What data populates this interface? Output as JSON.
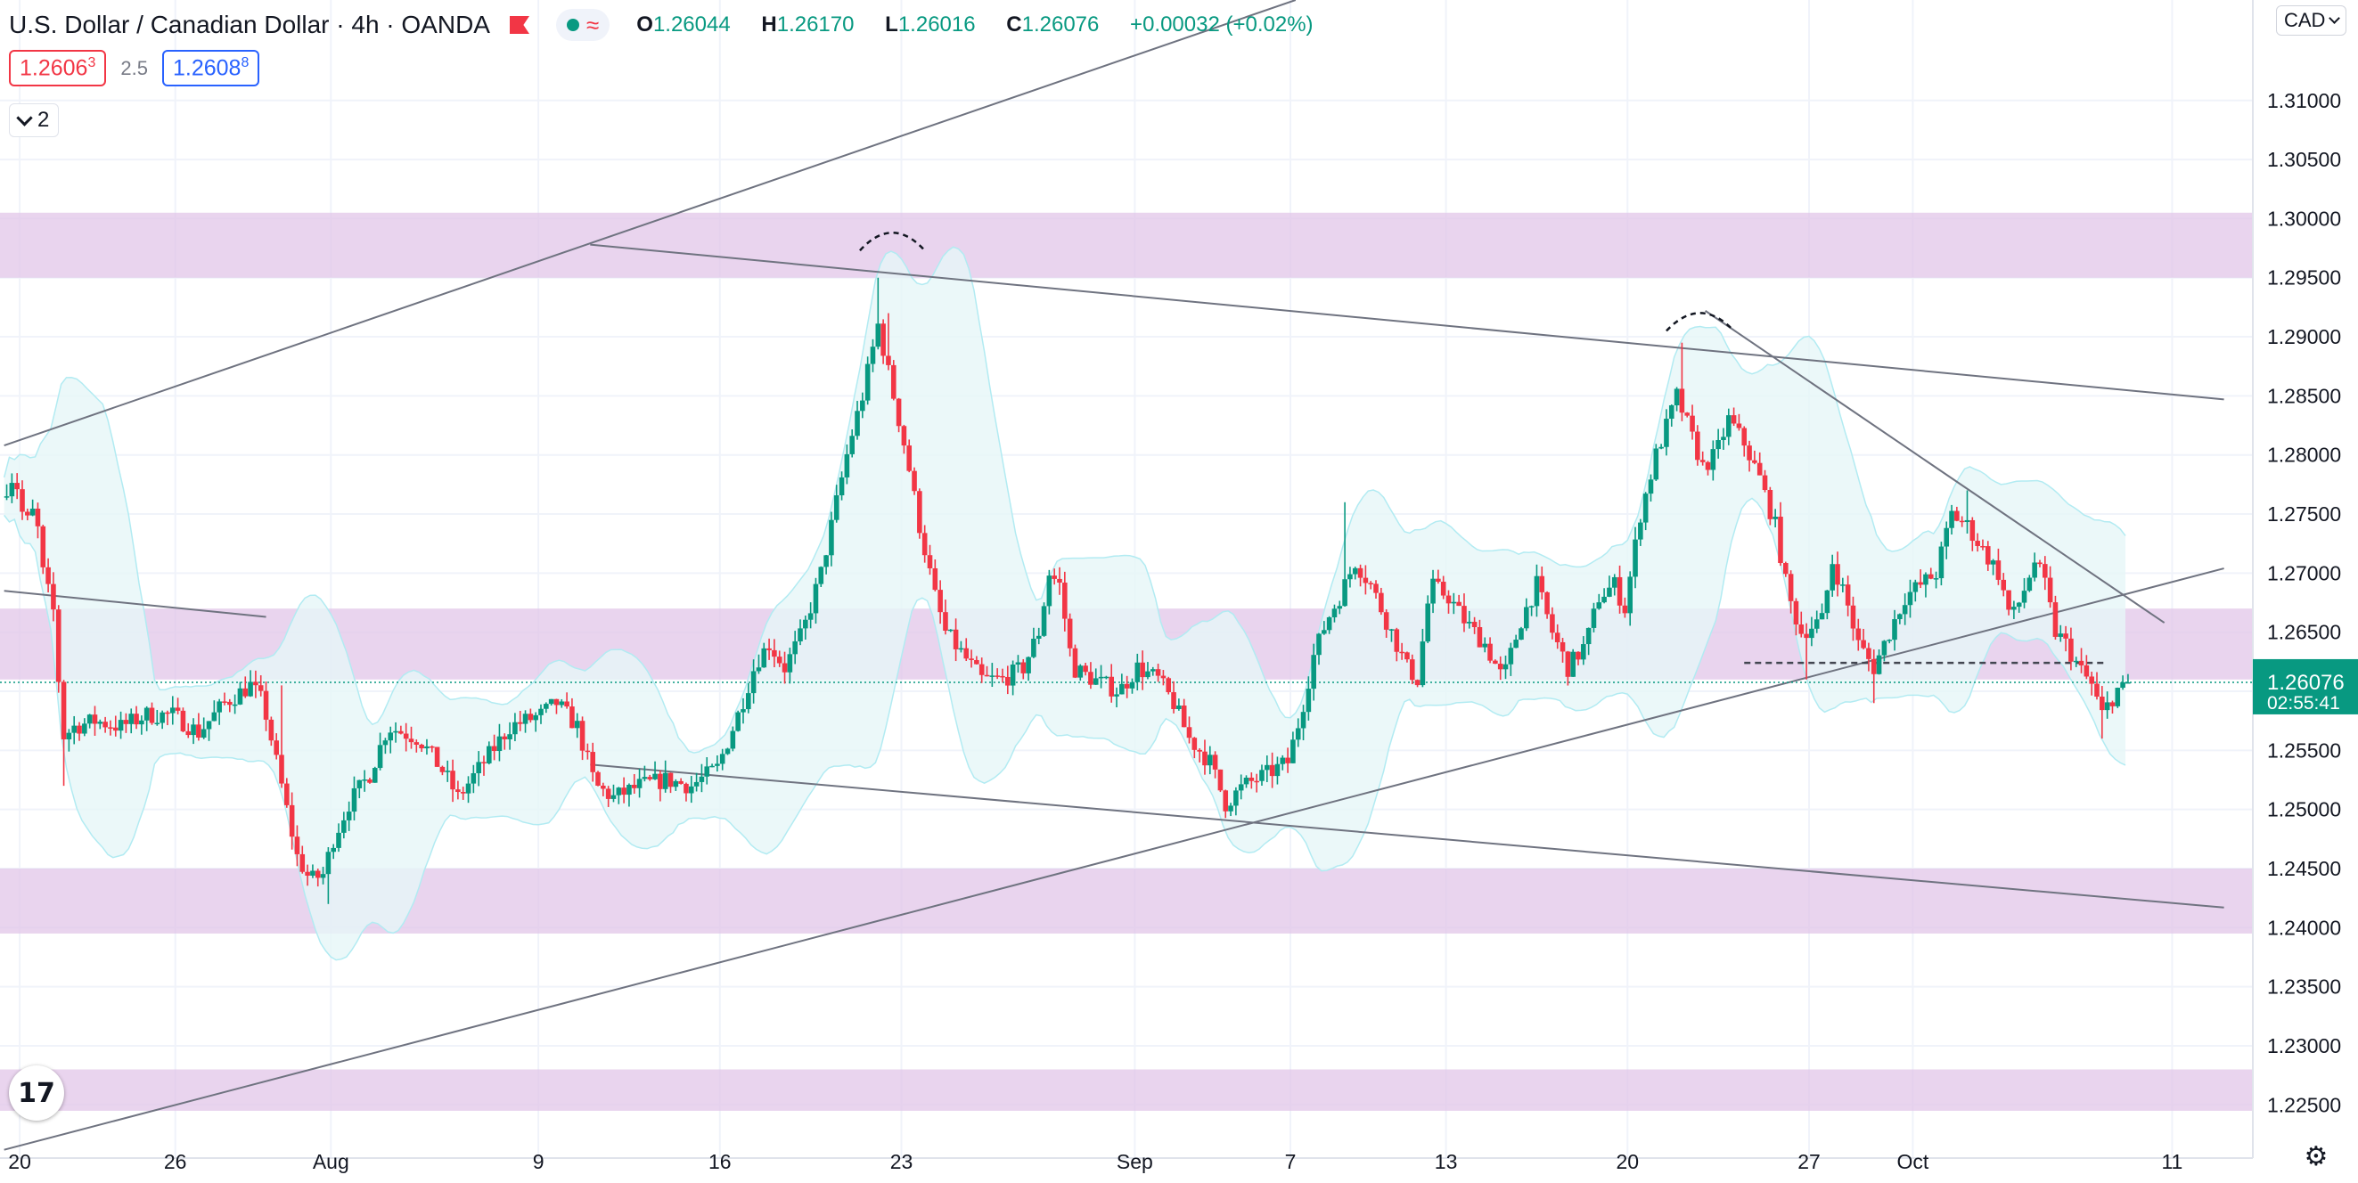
{
  "header": {
    "symbol": "U.S. Dollar / Canadian Dollar · 4h · OANDA",
    "ohlc": {
      "o_label": "O",
      "o": "1.26044",
      "h_label": "H",
      "h": "1.26170",
      "l_label": "L",
      "l": "1.26016",
      "c_label": "C",
      "c": "1.26076",
      "change": "+0.00032 (+0.02%)"
    },
    "sell_price": "1.2606",
    "sell_sup": "3",
    "spread": "2.5",
    "buy_price": "1.2608",
    "buy_sup": "8",
    "collapsed_count": "2",
    "currency": "CAD"
  },
  "colors": {
    "up": "#089981",
    "down": "#f23645",
    "zone": "#e1c6e8",
    "band": "#e6f6f8"
  },
  "chart_data": {
    "type": "candlestick",
    "title": "U.S. Dollar / Canadian Dollar · 4h · OANDA",
    "ylim": [
      1.2205,
      1.3185
    ],
    "yticks": [
      1.225,
      1.23,
      1.235,
      1.24,
      1.245,
      1.25,
      1.255,
      1.26,
      1.265,
      1.27,
      1.275,
      1.28,
      1.285,
      1.29,
      1.295,
      1.3,
      1.305,
      1.31
    ],
    "x_tick_labels": [
      {
        "label": "20",
        "day": -5
      },
      {
        "label": "26",
        "day": 1
      },
      {
        "label": "Aug",
        "day": 7
      },
      {
        "label": "9",
        "day": 15
      },
      {
        "label": "16",
        "day": 22
      },
      {
        "label": "23",
        "day": 29
      },
      {
        "label": "Sep",
        "day": 38
      },
      {
        "label": "7",
        "day": 44
      },
      {
        "label": "13",
        "day": 50
      },
      {
        "label": "20",
        "day": 57
      },
      {
        "label": "27",
        "day": 64
      },
      {
        "label": "Oct",
        "day": 68
      },
      {
        "label": "11",
        "day": 78
      }
    ],
    "price_keypoints": [
      [
        -5.6,
        1.2765
      ],
      [
        -5.1,
        1.2785
      ],
      [
        -4.7,
        1.274
      ],
      [
        -4.3,
        1.2755
      ],
      [
        -4.0,
        1.27
      ],
      [
        -3.5,
        1.266
      ],
      [
        -3.3,
        1.256
      ],
      [
        -2.8,
        1.257
      ],
      [
        -2.0,
        1.2575
      ],
      [
        -1.0,
        1.257
      ],
      [
        0.0,
        1.258
      ],
      [
        1.0,
        1.258
      ],
      [
        2.0,
        1.2565
      ],
      [
        3.0,
        1.259
      ],
      [
        4.0,
        1.2605
      ],
      [
        4.5,
        1.259
      ],
      [
        5.2,
        1.252
      ],
      [
        5.8,
        1.246
      ],
      [
        6.3,
        1.244
      ],
      [
        6.8,
        1.2445
      ],
      [
        7.2,
        1.2475
      ],
      [
        7.8,
        1.2505
      ],
      [
        8.6,
        1.253
      ],
      [
        9.3,
        1.257
      ],
      [
        10.5,
        1.256
      ],
      [
        11.5,
        1.253
      ],
      [
        12.0,
        1.251
      ],
      [
        13.0,
        1.254
      ],
      [
        14.0,
        1.257
      ],
      [
        15.2,
        1.258
      ],
      [
        15.8,
        1.259
      ],
      [
        16.6,
        1.257
      ],
      [
        17.3,
        1.252
      ],
      [
        18.0,
        1.251
      ],
      [
        19.0,
        1.252
      ],
      [
        20.0,
        1.2525
      ],
      [
        21.0,
        1.252
      ],
      [
        22.0,
        1.2535
      ],
      [
        22.8,
        1.258
      ],
      [
        23.5,
        1.2625
      ],
      [
        24.0,
        1.264
      ],
      [
        24.6,
        1.262
      ],
      [
        25.3,
        1.265
      ],
      [
        26.0,
        1.27
      ],
      [
        26.6,
        1.276
      ],
      [
        27.1,
        1.281
      ],
      [
        27.6,
        1.285
      ],
      [
        28.2,
        1.291
      ],
      [
        28.5,
        1.288
      ],
      [
        28.8,
        1.285
      ],
      [
        29.3,
        1.28
      ],
      [
        29.8,
        1.274
      ],
      [
        30.4,
        1.268
      ],
      [
        30.8,
        1.265
      ],
      [
        31.5,
        1.263
      ],
      [
        32.2,
        1.261
      ],
      [
        33.0,
        1.261
      ],
      [
        33.8,
        1.262
      ],
      [
        34.4,
        1.265
      ],
      [
        34.8,
        1.27
      ],
      [
        35.2,
        1.269
      ],
      [
        35.7,
        1.262
      ],
      [
        36.5,
        1.261
      ],
      [
        37.5,
        1.26
      ],
      [
        38.2,
        1.262
      ],
      [
        39.0,
        1.261
      ],
      [
        39.6,
        1.259
      ],
      [
        40.2,
        1.256
      ],
      [
        41.0,
        1.254
      ],
      [
        41.6,
        1.2505
      ],
      [
        42.3,
        1.252
      ],
      [
        43.2,
        1.253
      ],
      [
        44.0,
        1.254
      ],
      [
        44.5,
        1.258
      ],
      [
        45.0,
        1.263
      ],
      [
        45.5,
        1.266
      ],
      [
        46.0,
        1.268
      ],
      [
        46.6,
        1.271
      ],
      [
        47.2,
        1.269
      ],
      [
        48.0,
        1.265
      ],
      [
        48.6,
        1.262
      ],
      [
        49.0,
        1.261
      ],
      [
        49.5,
        1.269
      ],
      [
        50.2,
        1.268
      ],
      [
        50.8,
        1.266
      ],
      [
        51.6,
        1.264
      ],
      [
        52.3,
        1.261
      ],
      [
        53.0,
        1.266
      ],
      [
        53.6,
        1.269
      ],
      [
        54.2,
        1.265
      ],
      [
        54.8,
        1.262
      ],
      [
        55.5,
        1.264
      ],
      [
        56.0,
        1.268
      ],
      [
        56.6,
        1.269
      ],
      [
        57.0,
        1.267
      ],
      [
        57.6,
        1.275
      ],
      [
        58.2,
        1.28
      ],
      [
        58.7,
        1.283
      ],
      [
        59.0,
        1.285
      ],
      [
        59.5,
        1.282
      ],
      [
        60.0,
        1.279
      ],
      [
        60.5,
        1.28
      ],
      [
        61.0,
        1.283
      ],
      [
        61.6,
        1.281
      ],
      [
        62.2,
        1.278
      ],
      [
        62.8,
        1.274
      ],
      [
        63.3,
        1.268
      ],
      [
        63.8,
        1.265
      ],
      [
        64.6,
        1.266
      ],
      [
        65.0,
        1.271
      ],
      [
        65.5,
        1.268
      ],
      [
        66.0,
        1.264
      ],
      [
        66.6,
        1.262
      ],
      [
        67.2,
        1.265
      ],
      [
        67.8,
        1.268
      ],
      [
        68.4,
        1.269
      ],
      [
        69.0,
        1.27
      ],
      [
        69.6,
        1.275
      ],
      [
        70.2,
        1.274
      ],
      [
        70.8,
        1.272
      ],
      [
        71.4,
        1.27
      ],
      [
        71.9,
        1.266
      ],
      [
        72.3,
        1.268
      ],
      [
        72.8,
        1.271
      ],
      [
        73.2,
        1.269
      ],
      [
        73.6,
        1.265
      ],
      [
        74.0,
        1.264
      ],
      [
        74.5,
        1.262
      ],
      [
        75.0,
        1.2605
      ],
      [
        75.4,
        1.258
      ],
      [
        75.8,
        1.2595
      ],
      [
        76.2,
        1.2608
      ]
    ],
    "spikes": [
      [
        -3.3,
        1.252,
        0
      ],
      [
        5.0,
        1.2605,
        1
      ],
      [
        6.8,
        1.242,
        0
      ],
      [
        28.0,
        1.295,
        1
      ],
      [
        28.3,
        1.292,
        1
      ],
      [
        46.0,
        1.276,
        1
      ],
      [
        59.0,
        1.2895,
        1
      ],
      [
        62.8,
        1.276,
        1
      ],
      [
        63.8,
        1.261,
        0
      ],
      [
        70.0,
        1.277,
        1
      ],
      [
        66.5,
        1.259,
        0
      ],
      [
        41.9,
        1.2495,
        0
      ],
      [
        75.3,
        1.256,
        0
      ]
    ],
    "last_price": "1.26076",
    "countdown": "02:55:41",
    "zones": [
      [
        1.295,
        1.3005
      ],
      [
        1.261,
        1.267
      ],
      [
        1.2395,
        1.245
      ],
      [
        1.2245,
        1.228
      ]
    ],
    "trendlines": [
      [
        [
          -5.6,
          1.2808
        ],
        [
          44.2,
          1.3185
        ]
      ],
      [
        [
          17.0,
          1.2978
        ],
        [
          80.0,
          1.2847
        ]
      ],
      [
        [
          -5.6,
          1.2685
        ],
        [
          4.5,
          1.2663
        ]
      ],
      [
        [
          17.0,
          1.2538
        ],
        [
          80.0,
          1.2417
        ]
      ],
      [
        [
          -5.6,
          1.2212
        ],
        [
          80.0,
          1.2704
        ]
      ],
      [
        [
          60.0,
          1.2922
        ],
        [
          77.7,
          1.2658
        ]
      ]
    ],
    "dashed_level": {
      "from": 61.5,
      "to": 75.5,
      "price": 1.2624
    },
    "arcs": [
      [
        27.4,
        29.9,
        1.2973
      ],
      [
        58.5,
        61.1,
        1.2905
      ]
    ]
  }
}
